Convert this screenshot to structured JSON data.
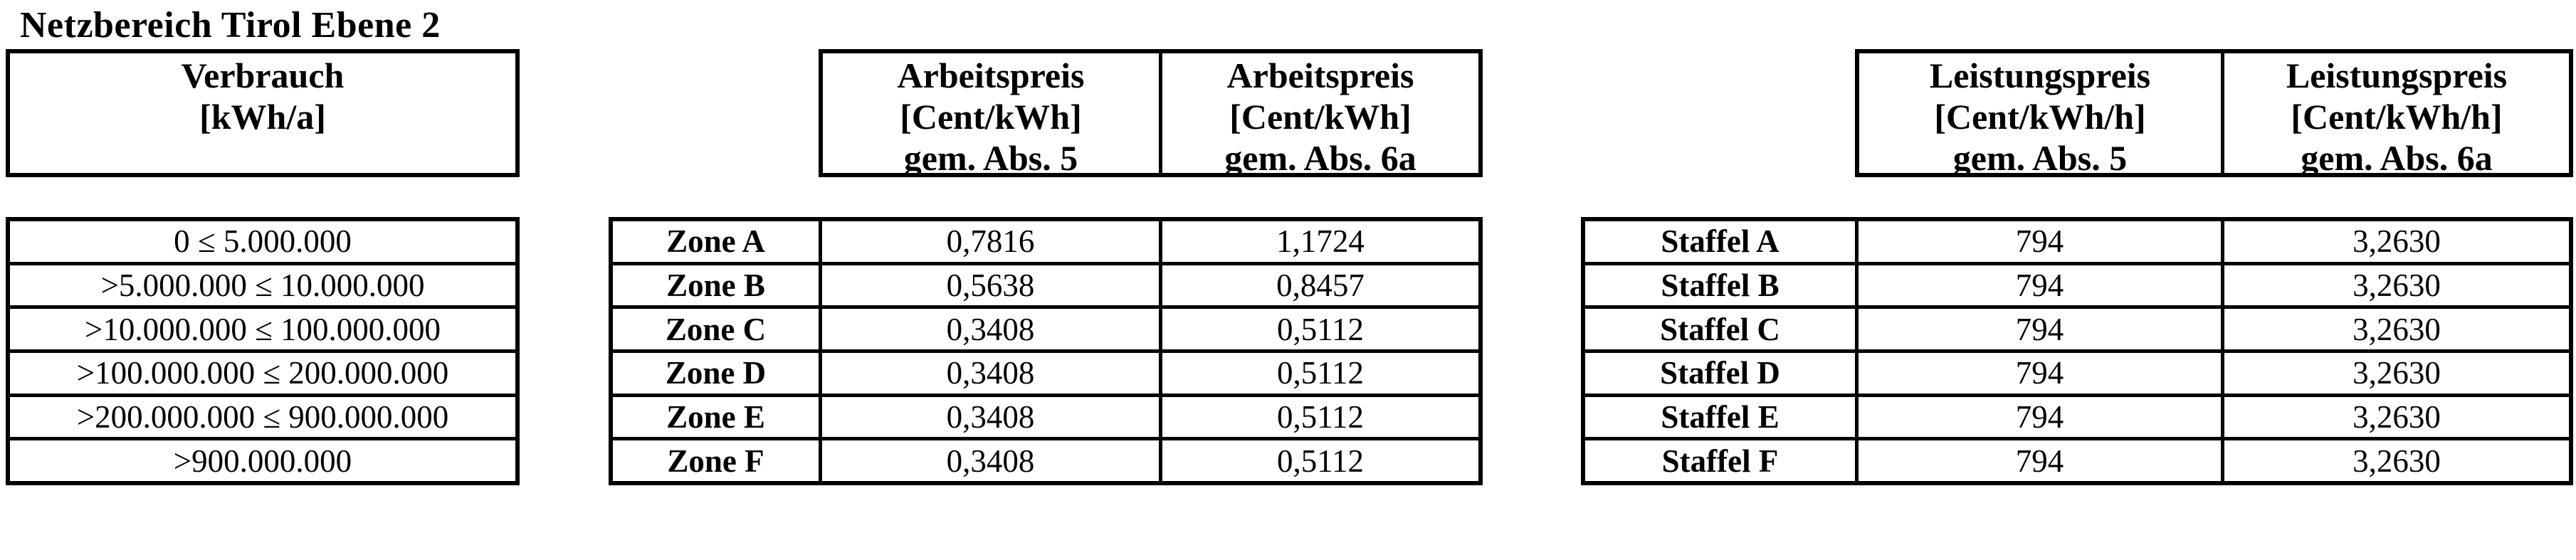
{
  "colors": {
    "text": "#000000",
    "background": "#ffffff",
    "border": "#000000"
  },
  "title": "Netzbereich Tirol Ebene 2",
  "consumption": {
    "header": {
      "line1": "Verbrauch",
      "line2": "[kWh/a]"
    },
    "rows": [
      "0 ≤ 5.000.000",
      ">5.000.000 ≤ 10.000.000",
      ">10.000.000 ≤ 100.000.000",
      ">100.000.000 ≤ 200.000.000",
      ">200.000.000 ≤ 900.000.000",
      ">900.000.000"
    ]
  },
  "arbeitspreis": {
    "col_abs5": {
      "line1": "Arbeitspreis",
      "line2": "[Cent/kWh]",
      "line3": "gem. Abs. 5"
    },
    "col_abs6a": {
      "line1": "Arbeitspreis",
      "line2": "[Cent/kWh]",
      "line3": "gem. Abs. 6a"
    },
    "rows": [
      {
        "label": "Zone A",
        "abs5": "0,7816",
        "abs6a": "1,1724"
      },
      {
        "label": "Zone B",
        "abs5": "0,5638",
        "abs6a": "0,8457"
      },
      {
        "label": "Zone C",
        "abs5": "0,3408",
        "abs6a": "0,5112"
      },
      {
        "label": "Zone D",
        "abs5": "0,3408",
        "abs6a": "0,5112"
      },
      {
        "label": "Zone E",
        "abs5": "0,3408",
        "abs6a": "0,5112"
      },
      {
        "label": "Zone F",
        "abs5": "0,3408",
        "abs6a": "0,5112"
      }
    ]
  },
  "leistungspreis": {
    "col_abs5": {
      "line1": "Leistungspreis",
      "line2": "[Cent/kWh/h]",
      "line3": "gem. Abs. 5"
    },
    "col_abs6a": {
      "line1": "Leistungspreis",
      "line2": "[Cent/kWh/h]",
      "line3": "gem. Abs. 6a"
    },
    "rows": [
      {
        "label": "Staffel A",
        "abs5": "794",
        "abs6a": "3,2630"
      },
      {
        "label": "Staffel B",
        "abs5": "794",
        "abs6a": "3,2630"
      },
      {
        "label": "Staffel C",
        "abs5": "794",
        "abs6a": "3,2630"
      },
      {
        "label": "Staffel D",
        "abs5": "794",
        "abs6a": "3,2630"
      },
      {
        "label": "Staffel E",
        "abs5": "794",
        "abs6a": "3,2630"
      },
      {
        "label": "Staffel F",
        "abs5": "794",
        "abs6a": "3,2630"
      }
    ]
  }
}
